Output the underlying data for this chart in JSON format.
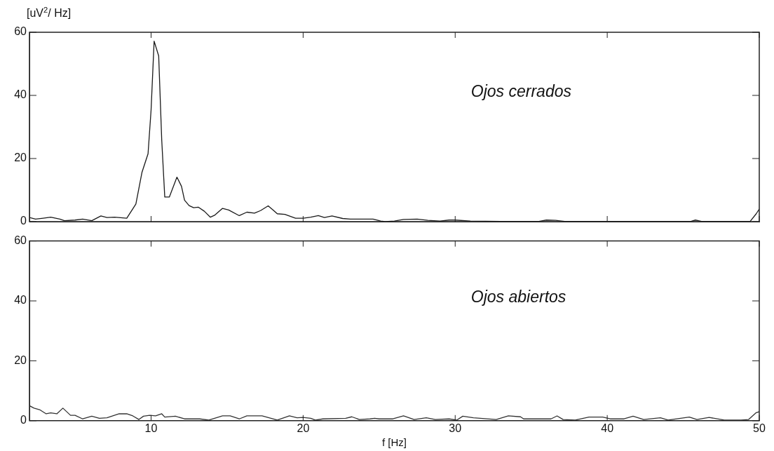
{
  "chart_data": [
    {
      "type": "line",
      "ylabel": "[uV$^{2}$/ Hz]",
      "annotations": [
        "Ojos cerrados"
      ],
      "xlim": [
        2,
        50
      ],
      "xticks": [
        10,
        20,
        30,
        40,
        50
      ],
      "ylim": [
        0,
        60
      ],
      "yticks": [
        0,
        20,
        40,
        60
      ],
      "tick_labels": "y",
      "grid": false,
      "legend": false,
      "marker": "none",
      "line_style": "solid",
      "series": [
        {
          "color": "#1a1a1a",
          "x": [
            2,
            2.4,
            2.9,
            3.4,
            4.0,
            4.3,
            5.0,
            5.5,
            6.1,
            6.7,
            7.1,
            7.6,
            8.4,
            9.0,
            9.4,
            9.8,
            10.0,
            10.2,
            10.5,
            10.7,
            10.9,
            11.2,
            11.7,
            12.0,
            12.2,
            12.5,
            12.8,
            13.1,
            13.5,
            13.9,
            14.2,
            14.7,
            15.1,
            15.8,
            16.3,
            16.8,
            17.2,
            17.7,
            18.0,
            18.3,
            18.8,
            19.5,
            20.0,
            20.5,
            21.0,
            21.4,
            21.9,
            22.6,
            23.1,
            23.7,
            24.6,
            25.1,
            25.4,
            26.0,
            26.6,
            27.5,
            28.2,
            29.0,
            29.6,
            30.0,
            31.0,
            33.0,
            35.5,
            36.0,
            36.6,
            37.2,
            40.0,
            45.5,
            45.8,
            46.2,
            49.4,
            49.8,
            50
          ],
          "values": [
            1.3,
            0.8,
            1.1,
            1.4,
            0.8,
            0.3,
            0.5,
            0.8,
            0.3,
            1.8,
            1.3,
            1.4,
            1.1,
            5.6,
            15.6,
            21.5,
            35.4,
            57.2,
            52.5,
            25.9,
            7.8,
            7.8,
            14.1,
            11.2,
            6.8,
            5.1,
            4.4,
            4.6,
            3.3,
            1.4,
            2.1,
            4.2,
            3.7,
            1.9,
            3.0,
            2.7,
            3.5,
            5.0,
            3.8,
            2.5,
            2.3,
            1.1,
            1.1,
            1.4,
            1.9,
            1.3,
            1.8,
            1.0,
            0.8,
            0.8,
            0.8,
            0.2,
            0,
            0.2,
            0.7,
            0.8,
            0.4,
            0.2,
            0.5,
            0.5,
            0.2,
            0.1,
            0.1,
            0.5,
            0.4,
            0.1,
            0.1,
            0.1,
            0.5,
            0.1,
            0.1,
            2.5,
            4.0
          ]
        }
      ]
    },
    {
      "type": "line",
      "xlabel": "f [Hz]",
      "annotations": [
        "Ojos abiertos"
      ],
      "xlim": [
        2,
        50
      ],
      "xticks": [
        10,
        20,
        30,
        40,
        50
      ],
      "ylim": [
        0,
        60
      ],
      "yticks": [
        0,
        20,
        40,
        60
      ],
      "grid": false,
      "legend": false,
      "marker": "none",
      "line_style": "solid",
      "series": [
        {
          "color": "#333333",
          "x": [
            2,
            2.3,
            2.7,
            3.1,
            3.4,
            3.8,
            4.2,
            4.7,
            5.0,
            5.5,
            6.1,
            6.6,
            7.1,
            7.9,
            8.4,
            8.8,
            9.2,
            9.5,
            9.9,
            10.3,
            10.7,
            10.9,
            11.6,
            12.2,
            13.2,
            13.8,
            14.7,
            15.2,
            15.8,
            16.3,
            17.3,
            18.3,
            19.1,
            19.6,
            20.0,
            20.5,
            20.8,
            21.3,
            22.8,
            23.2,
            23.7,
            24.4,
            24.7,
            25.0,
            25.9,
            26.6,
            27.3,
            28.1,
            28.7,
            29.6,
            30.1,
            30.5,
            31.2,
            32.7,
            33.5,
            34.3,
            34.5,
            36.3,
            36.7,
            37.1,
            37.9,
            38.8,
            39.7,
            40.2,
            41.1,
            41.7,
            42.4,
            43.5,
            44.0,
            45.4,
            45.9,
            46.7,
            47.7,
            48.8,
            49.3,
            49.8,
            50
          ],
          "values": [
            5.0,
            4.2,
            3.6,
            2.3,
            2.6,
            2.3,
            4.2,
            1.8,
            1.8,
            0.6,
            1.5,
            0.8,
            1.0,
            2.3,
            2.3,
            1.6,
            0.4,
            1.5,
            1.8,
            1.6,
            2.3,
            1.2,
            1.5,
            0.6,
            0.6,
            0.2,
            1.6,
            1.6,
            0.6,
            1.6,
            1.6,
            0.2,
            1.6,
            1.0,
            1.1,
            0.8,
            0.2,
            0.6,
            0.8,
            1.3,
            0.4,
            0.6,
            0.8,
            0.6,
            0.6,
            1.6,
            0.4,
            1.0,
            0.4,
            0.6,
            0.2,
            1.5,
            1.0,
            0.4,
            1.6,
            1.3,
            0.6,
            0.6,
            1.6,
            0.4,
            0.2,
            1.2,
            1.2,
            0.6,
            0.6,
            1.5,
            0.4,
            1.0,
            0.2,
            1.2,
            0.4,
            1.1,
            0.2,
            0.2,
            0.4,
            2.7,
            3.0
          ]
        }
      ]
    }
  ]
}
